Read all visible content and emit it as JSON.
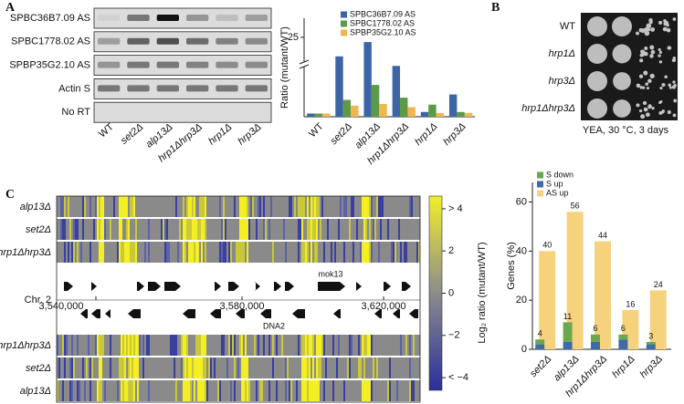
{
  "panel_labels": [
    "A",
    "B",
    "C"
  ],
  "gel": {
    "rows": [
      "SPBC36B7.09 AS",
      "SPBC1778.02 AS",
      "SPBP35G2.10 AS",
      "Actin S",
      "No RT"
    ],
    "lanes": [
      "WT",
      "set2Δ",
      "alp13Δ",
      "hrp1Δhrp3Δ",
      "hrp1Δ",
      "hrp3Δ"
    ]
  },
  "spot_assay": {
    "strains": [
      "WT",
      "hrp1Δ",
      "hrp3Δ",
      "hrp1Δhrp3Δ"
    ],
    "caption": "YEA, 30 °C, 3 days"
  },
  "heatmap": {
    "top_rows": [
      "alp13Δ",
      "set2Δ",
      "hrp1Δhrp3Δ"
    ],
    "bottom_rows": [
      "hrp1Δhrp3Δ",
      "set2Δ",
      "alp13Δ"
    ],
    "chromosome": "Chr. 2",
    "coordinates": [
      "3,540,000",
      "3,580,000",
      "3,620,000"
    ],
    "genes": [
      "mok13",
      "DNA2"
    ],
    "colorbar": {
      "label": "Log₂ ratio (mutant/WT)",
      "lim": [
        -4.6,
        4.6
      ],
      "ticks": [
        {
          "value": 4,
          "label": "> 4"
        },
        2,
        0,
        {
          "value": -2,
          "label": "−2"
        },
        {
          "value": -4,
          "label": "< −4"
        }
      ]
    }
  },
  "chart_data": [
    {
      "type": "bar",
      "y_label": "Ratio (mutant/WT)",
      "legend": "upper right",
      "categories": [
        "WT",
        "set2Δ",
        "alp13Δ",
        "hrp1Δhrp3Δ",
        "hrp1Δ",
        "hrp3Δ"
      ],
      "series": [
        {
          "name": "SPBC36B7.09 AS",
          "color": "#3d65a6",
          "values": [
            1,
            19,
            23.5,
            16,
            1.5,
            7
          ]
        },
        {
          "name": "SPBC1778.02 AS",
          "color": "#5c9a48",
          "values": [
            1,
            5.3,
            10,
            6,
            3.8,
            1.5
          ]
        },
        {
          "name": "SPBP35G2.10 AS",
          "color": "#f1b64c",
          "values": [
            1,
            3.5,
            4,
            3,
            1.2,
            1.2
          ]
        }
      ],
      "ylim": [
        0,
        31
      ],
      "yticks": [
        25
      ],
      "axis_break": true
    },
    {
      "type": "bar",
      "y_label": "Genes (%)",
      "legend": "upper left",
      "categories": [
        "set2Δ",
        "alp13Δ",
        "hrp1Δhrp3Δ",
        "hrp1Δ",
        "hrp3Δ"
      ],
      "series": [
        {
          "name": "S down",
          "color": "#6aa84f",
          "stacked": true,
          "values": [
            2,
            8,
            3,
            2,
            1
          ]
        },
        {
          "name": "S up",
          "color": "#3f6aa8",
          "stacked": true,
          "values": [
            2,
            3,
            3,
            4,
            2
          ]
        },
        {
          "name": "AS up",
          "color": "#f7d27c",
          "stacked": false,
          "values": [
            40,
            56,
            44,
            16,
            24
          ]
        }
      ],
      "annotations": [
        4,
        11,
        6,
        6,
        3
      ],
      "ylim": [
        0,
        68
      ],
      "yticks": [
        0,
        20,
        40,
        60
      ]
    }
  ]
}
